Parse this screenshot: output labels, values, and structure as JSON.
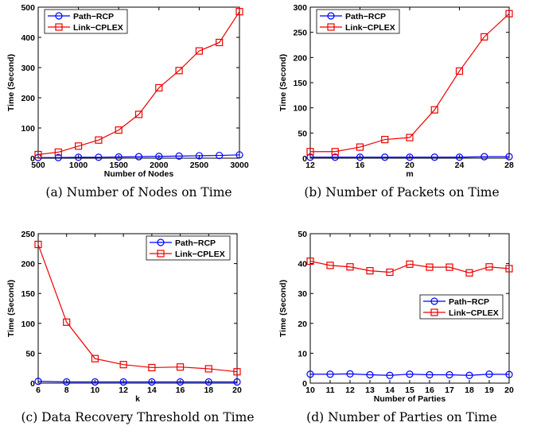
{
  "colors": {
    "path_rcp": "#0000ff",
    "link_cplex": "#ee0000",
    "axis": "#000000"
  },
  "chart_data": [
    {
      "type": "line",
      "caption": "(a) Number of Nodes on Time",
      "xlabel": "Number of Nodes",
      "ylabel": "Time (Second)",
      "x": [
        500,
        750,
        1000,
        1250,
        1500,
        1750,
        2000,
        2250,
        2500,
        2750,
        3000
      ],
      "xticks": [
        500,
        1000,
        1500,
        2000,
        2500,
        3000
      ],
      "yticks": [
        0,
        100,
        200,
        300,
        400,
        500
      ],
      "xlim": [
        500,
        3000
      ],
      "ylim": [
        0,
        500
      ],
      "legend": "top-left",
      "series": [
        {
          "name": "Path−RCP",
          "values": [
            2,
            2,
            3,
            3,
            4,
            5,
            6,
            7,
            8,
            9,
            11
          ]
        },
        {
          "name": "Link−CPLEX",
          "values": [
            12,
            20,
            40,
            60,
            93,
            145,
            233,
            290,
            355,
            383,
            485
          ]
        }
      ]
    },
    {
      "type": "line",
      "caption": "(b) Number of Packets on Time",
      "xlabel": "m",
      "ylabel": "Time (Second)",
      "x": [
        12,
        14,
        16,
        18,
        20,
        22,
        24,
        26,
        28
      ],
      "xticks": [
        12,
        16,
        20,
        24,
        28
      ],
      "yticks": [
        0,
        50,
        100,
        150,
        200,
        250,
        300
      ],
      "xlim": [
        12,
        28
      ],
      "ylim": [
        0,
        300
      ],
      "legend": "top-left",
      "series": [
        {
          "name": "Path−RCP",
          "values": [
            2,
            2,
            2,
            2,
            2,
            2,
            2,
            3,
            3
          ]
        },
        {
          "name": "Link−CPLEX",
          "values": [
            13,
            13,
            22,
            37,
            41,
            96,
            173,
            241,
            287
          ]
        }
      ]
    },
    {
      "type": "line",
      "caption": "(c) Data Recovery Threshold on Time",
      "xlabel": "k",
      "ylabel": "Time (Second)",
      "x": [
        6,
        8,
        10,
        12,
        14,
        16,
        18,
        20
      ],
      "xticks": [
        6,
        8,
        10,
        12,
        14,
        16,
        18,
        20
      ],
      "yticks": [
        0,
        50,
        100,
        150,
        200,
        250
      ],
      "xlim": [
        6,
        20
      ],
      "ylim": [
        0,
        250
      ],
      "legend": "top-right",
      "series": [
        {
          "name": "Path−RCP",
          "values": [
            3,
            2,
            2,
            2,
            2,
            2,
            2,
            2
          ]
        },
        {
          "name": "Link−CPLEX",
          "values": [
            232,
            102,
            41,
            31,
            26,
            27,
            24,
            19
          ]
        }
      ]
    },
    {
      "type": "line",
      "caption": "(d) Number of Parties on Time",
      "xlabel": "Number of Parties",
      "ylabel": "Time (Second)",
      "x": [
        10,
        11,
        12,
        13,
        14,
        15,
        16,
        17,
        18,
        19,
        20
      ],
      "xticks": [
        10,
        11,
        12,
        13,
        14,
        15,
        16,
        17,
        18,
        19,
        20
      ],
      "yticks": [
        0,
        10,
        20,
        30,
        40,
        50
      ],
      "xlim": [
        10,
        20
      ],
      "ylim": [
        0,
        50
      ],
      "legend": "right",
      "series": [
        {
          "name": "Path−RCP",
          "values": [
            3,
            3,
            3.1,
            2.8,
            2.6,
            3,
            2.8,
            2.8,
            2.6,
            3,
            2.9
          ]
        },
        {
          "name": "Link−CPLEX",
          "values": [
            40.8,
            39.4,
            38.9,
            37.6,
            37.1,
            39.8,
            38.8,
            38.8,
            36.9,
            38.9,
            38.3
          ]
        }
      ]
    }
  ]
}
